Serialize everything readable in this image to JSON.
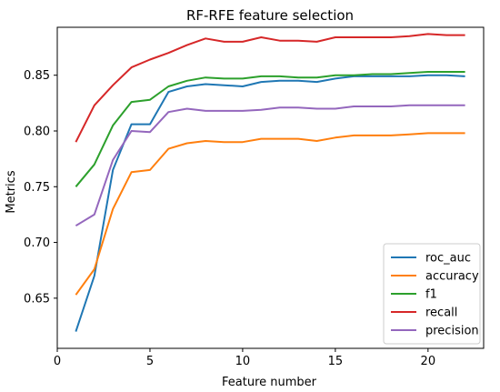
{
  "chart_data": {
    "type": "line",
    "title": "RF-RFE feature selection",
    "xlabel": "Feature number",
    "ylabel": "Metrics",
    "xlim": [
      0,
      23
    ],
    "ylim": [
      0.605,
      0.893
    ],
    "xticks": [
      0,
      5,
      10,
      15,
      20
    ],
    "yticks": [
      0.65,
      0.7,
      0.75,
      0.8,
      0.85
    ],
    "xtick_labels": [
      "0",
      "5",
      "10",
      "15",
      "20"
    ],
    "ytick_labels": [
      "0.65",
      "0.70",
      "0.75",
      "0.80",
      "0.85"
    ],
    "grid": false,
    "legend_position": "lower-right",
    "x": [
      1,
      2,
      3,
      4,
      5,
      6,
      7,
      8,
      9,
      10,
      11,
      12,
      13,
      14,
      15,
      16,
      17,
      18,
      19,
      20,
      21,
      22
    ],
    "series": [
      {
        "name": "roc_auc",
        "color": "#1f77b4",
        "values": [
          0.62,
          0.67,
          0.765,
          0.806,
          0.806,
          0.835,
          0.84,
          0.842,
          0.841,
          0.84,
          0.844,
          0.845,
          0.845,
          0.844,
          0.847,
          0.849,
          0.849,
          0.849,
          0.849,
          0.85,
          0.85,
          0.849
        ]
      },
      {
        "name": "accuracy",
        "color": "#ff7f0e",
        "values": [
          0.653,
          0.676,
          0.73,
          0.763,
          0.765,
          0.784,
          0.789,
          0.791,
          0.79,
          0.79,
          0.793,
          0.793,
          0.793,
          0.791,
          0.794,
          0.796,
          0.796,
          0.796,
          0.797,
          0.798,
          0.798,
          0.798
        ]
      },
      {
        "name": "f1",
        "color": "#2ca02c",
        "values": [
          0.75,
          0.77,
          0.805,
          0.826,
          0.828,
          0.84,
          0.845,
          0.848,
          0.847,
          0.847,
          0.849,
          0.849,
          0.848,
          0.848,
          0.85,
          0.85,
          0.851,
          0.851,
          0.852,
          0.853,
          0.853,
          0.853
        ]
      },
      {
        "name": "recall",
        "color": "#d62728",
        "values": [
          0.79,
          0.823,
          0.841,
          0.857,
          0.864,
          0.87,
          0.877,
          0.883,
          0.88,
          0.88,
          0.884,
          0.881,
          0.881,
          0.88,
          0.884,
          0.884,
          0.884,
          0.884,
          0.885,
          0.887,
          0.886,
          0.886
        ]
      },
      {
        "name": "precision",
        "color": "#9467bd",
        "values": [
          0.715,
          0.725,
          0.774,
          0.8,
          0.799,
          0.817,
          0.82,
          0.818,
          0.818,
          0.818,
          0.819,
          0.821,
          0.821,
          0.82,
          0.82,
          0.822,
          0.822,
          0.822,
          0.823,
          0.823,
          0.823,
          0.823
        ]
      }
    ]
  }
}
